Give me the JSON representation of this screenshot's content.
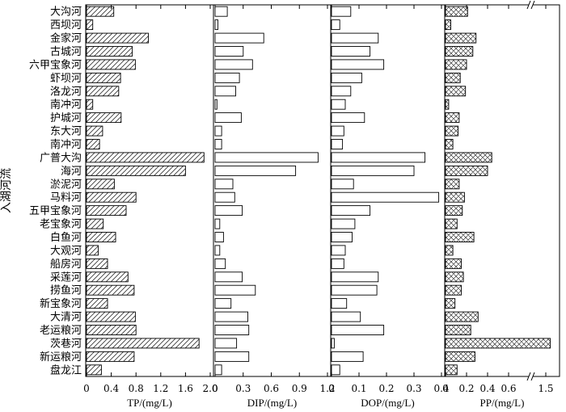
{
  "chart_data": {
    "type": "bar",
    "orientation": "horizontal",
    "ylabel": "入湖河流",
    "categories": [
      "大沟河",
      "西坝河",
      "金家河",
      "古城河",
      "六甲宝象河",
      "虾坝河",
      "洛龙河",
      "南冲河",
      "护城河",
      "东大河",
      "南冲河",
      "广普大沟",
      "海河",
      "淤泥河",
      "马料河",
      "五甲宝象河",
      "老宝象河",
      "白鱼河",
      "大观河",
      "船房河",
      "采莲河",
      "捞鱼河",
      "新宝象河",
      "大清河",
      "老运粮河",
      "茨巷河",
      "新运粮河",
      "盘龙江"
    ],
    "panels": [
      {
        "xlabel": "TP/(mg/L)",
        "xlim": [
          0,
          2.0
        ],
        "ticks": [
          0,
          0.4,
          0.8,
          1.2,
          1.6,
          2.0
        ],
        "tick_labels": [
          "0",
          "0.4",
          "0.8",
          "1.2",
          "1.6",
          "2.0"
        ],
        "pattern": "hatch",
        "values": [
          0.44,
          0.1,
          1.0,
          0.74,
          0.79,
          0.55,
          0.52,
          0.1,
          0.56,
          0.26,
          0.21,
          1.9,
          1.6,
          0.45,
          0.8,
          0.64,
          0.27,
          0.47,
          0.19,
          0.34,
          0.67,
          0.77,
          0.34,
          0.79,
          0.8,
          1.82,
          0.77,
          0.24
        ]
      },
      {
        "xlabel": "DIP/(mg/L)",
        "xlim": [
          0,
          1.2
        ],
        "ticks": [
          0,
          0.3,
          0.6,
          0.9,
          1.2
        ],
        "tick_labels": [
          "0",
          "0.3",
          "0.6",
          "0.9",
          "1.2"
        ],
        "pattern": "plain",
        "values": [
          0.13,
          0.03,
          0.52,
          0.3,
          0.4,
          0.26,
          0.22,
          0.02,
          0.28,
          0.07,
          0.07,
          1.1,
          0.86,
          0.19,
          0.21,
          0.29,
          0.05,
          0.09,
          0.05,
          0.11,
          0.29,
          0.43,
          0.17,
          0.35,
          0.36,
          0.23,
          0.36,
          0.07
        ]
      },
      {
        "xlabel": "DOP/(mg/L)",
        "xlim": [
          0,
          0.4
        ],
        "ticks": [
          0,
          0.1,
          0.2,
          0.3,
          0.4
        ],
        "tick_labels": [
          "0",
          "0.1",
          "0.2",
          "0.3",
          "0.4"
        ],
        "pattern": "plain",
        "values": [
          0.07,
          0.03,
          0.17,
          0.14,
          0.19,
          0.11,
          0.07,
          0.05,
          0.12,
          0.045,
          0.04,
          0.34,
          0.3,
          0.08,
          0.39,
          0.14,
          0.085,
          0.075,
          0.05,
          0.045,
          0.17,
          0.165,
          0.055,
          0.105,
          0.19,
          0.01,
          0.115,
          0.03
        ]
      },
      {
        "xlabel": "PP/(mg/L)",
        "xlim": [
          0,
          1.6
        ],
        "ticks": [
          0,
          0.2,
          0.4,
          0.6,
          1.5
        ],
        "tick_labels": [
          "0",
          "0.2",
          "0.4",
          "0.6",
          "1.5"
        ],
        "pattern": "crosshatch",
        "axis_break": true,
        "values": [
          0.21,
          0.05,
          0.29,
          0.26,
          0.2,
          0.14,
          0.19,
          0.03,
          0.13,
          0.12,
          0.07,
          0.44,
          0.4,
          0.13,
          0.18,
          0.16,
          0.11,
          0.27,
          0.07,
          0.15,
          0.17,
          0.15,
          0.09,
          0.31,
          0.24,
          1.54,
          0.28,
          0.11
        ]
      }
    ]
  }
}
